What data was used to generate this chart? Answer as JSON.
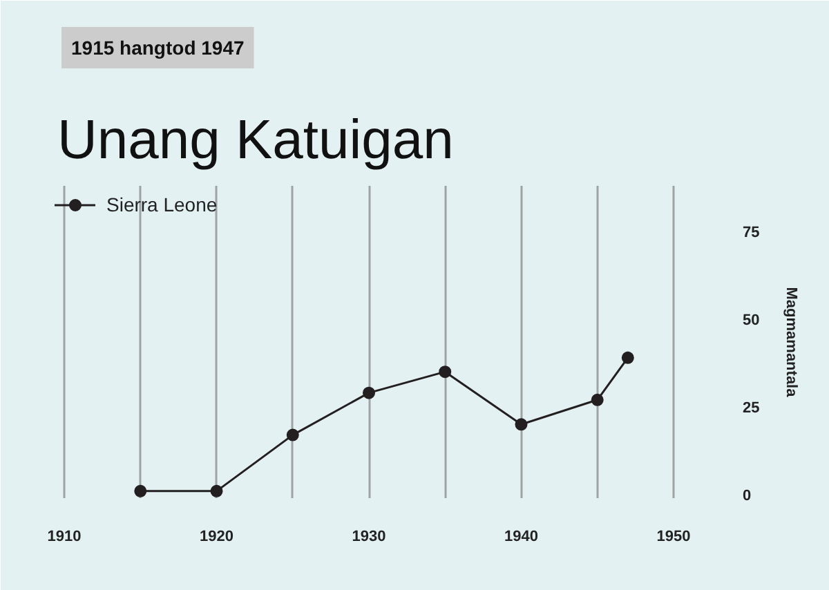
{
  "chart_data": {
    "type": "line",
    "title": "Unang Katuigan",
    "subtitle": "1915 hangtod 1947",
    "ylabel": "Magmamantala",
    "x": [
      1915,
      1920,
      1925,
      1930,
      1935,
      1940,
      1945,
      1947
    ],
    "series": [
      {
        "name": "Sierra Leone",
        "color": "#231f20",
        "values": [
          1,
          1,
          17,
          29,
          35,
          20,
          27,
          39
        ]
      }
    ],
    "xlim": [
      1909,
      1951
    ],
    "ylim": [
      -1,
      88
    ],
    "xticks": [
      1910,
      {
        "value": 1915,
        "label": null
      },
      1920,
      {
        "value": 1925,
        "label": null
      },
      1930,
      {
        "value": 1935,
        "label": null
      },
      1940,
      {
        "value": 1945,
        "label": null
      },
      1950
    ],
    "yticks": [
      0,
      25,
      50,
      75
    ],
    "grid": "x",
    "legend": "top left",
    "marker": "circle",
    "line_style": "solid"
  }
}
